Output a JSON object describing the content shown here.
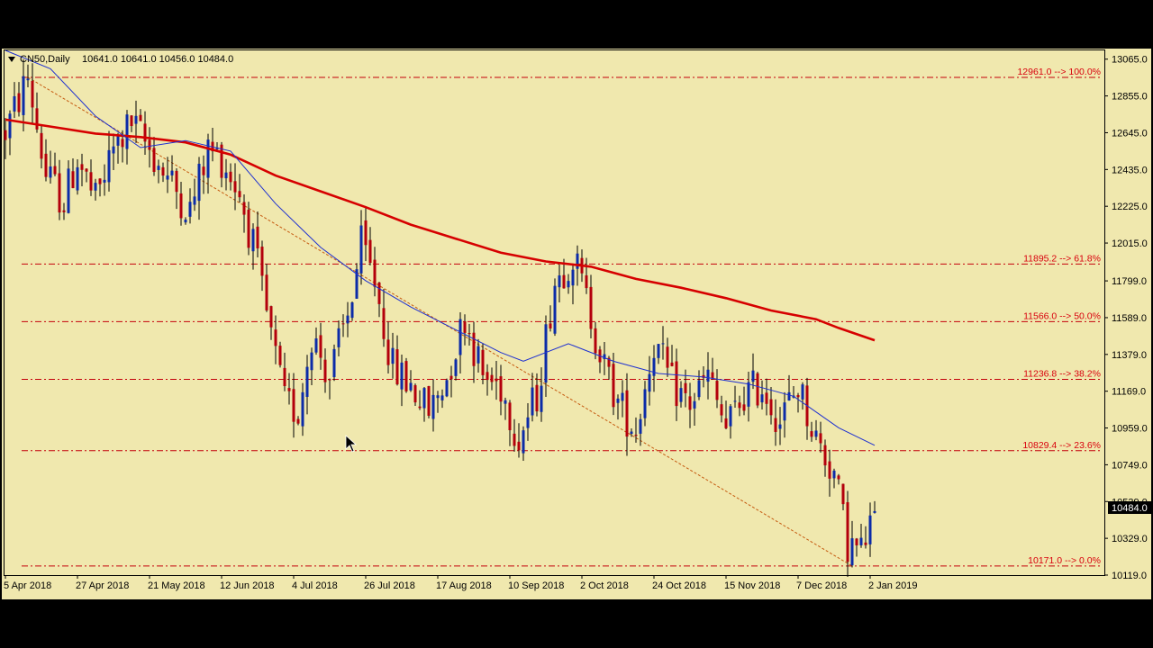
{
  "header": {
    "symbol_label": "CN50,Daily",
    "ohlc_label": "10641.0 10641.0 10456.0 10484.0"
  },
  "current_price_label": "10484.0",
  "colors": {
    "background": "#f0e8ae",
    "bull_candle": "#0c2ba8",
    "bear_candle": "#b3000c",
    "ma_fast": "#1d2fd1",
    "ma_slow": "#d60000",
    "fib_line": "#c4000b",
    "trendline": "#c55a10"
  },
  "chart_data": {
    "type": "candlestick",
    "title": "CN50,Daily",
    "ylim": [
      10119,
      13115
    ],
    "y_ticks": [
      13065.0,
      12855.0,
      12645.0,
      12435.0,
      12225.0,
      12015.0,
      11799.0,
      11589.0,
      11379.0,
      11169.0,
      10959.0,
      10749.0,
      10539.0,
      10329.0,
      10119.0
    ],
    "x_ticks": [
      "5 Apr 2018",
      "27 Apr 2018",
      "21 May 2018",
      "12 Jun 2018",
      "4 Jul 2018",
      "26 Jul 2018",
      "17 Aug 2018",
      "10 Sep 2018",
      "2 Oct 2018",
      "24 Oct 2018",
      "15 Nov 2018",
      "7 Dec 2018",
      "2 Jan 2019"
    ],
    "x_tick_bars": [
      0,
      16,
      32,
      48,
      64,
      80,
      96,
      112,
      128,
      144,
      160,
      176,
      192
    ],
    "num_bars": 194,
    "fib_levels": [
      {
        "price": 12961.0,
        "label": "12961.0 --> 100.0%"
      },
      {
        "price": 11895.2,
        "label": "11895.2 --> 61.8%"
      },
      {
        "price": 11566.0,
        "label": "11566.0 --> 50.0%"
      },
      {
        "price": 11236.8,
        "label": "11236.8 --> 38.2%"
      },
      {
        "price": 10829.4,
        "label": "10829.4 --> 23.6%"
      },
      {
        "price": 10171.0,
        "label": "10171.0 --> 0.0%"
      }
    ],
    "trendline": {
      "from": {
        "bar": 5,
        "price": 12961.0
      },
      "to": {
        "bar": 188,
        "price": 10171.0
      }
    },
    "ma_fast": [
      [
        0,
        13180
      ],
      [
        10,
        13010
      ],
      [
        20,
        12740
      ],
      [
        30,
        12560
      ],
      [
        40,
        12600
      ],
      [
        50,
        12540
      ],
      [
        60,
        12240
      ],
      [
        70,
        11990
      ],
      [
        80,
        11800
      ],
      [
        90,
        11650
      ],
      [
        100,
        11520
      ],
      [
        110,
        11390
      ],
      [
        115,
        11340
      ],
      [
        125,
        11440
      ],
      [
        135,
        11340
      ],
      [
        145,
        11270
      ],
      [
        155,
        11250
      ],
      [
        165,
        11210
      ],
      [
        175,
        11140
      ],
      [
        185,
        10960
      ],
      [
        193,
        10860
      ]
    ],
    "ma_slow": [
      [
        0,
        12720
      ],
      [
        10,
        12680
      ],
      [
        20,
        12640
      ],
      [
        30,
        12620
      ],
      [
        40,
        12590
      ],
      [
        50,
        12520
      ],
      [
        60,
        12400
      ],
      [
        70,
        12310
      ],
      [
        80,
        12220
      ],
      [
        90,
        12120
      ],
      [
        100,
        12040
      ],
      [
        110,
        11960
      ],
      [
        120,
        11910
      ],
      [
        130,
        11880
      ],
      [
        140,
        11810
      ],
      [
        150,
        11760
      ],
      [
        160,
        11700
      ],
      [
        170,
        11630
      ],
      [
        180,
        11580
      ],
      [
        185,
        11530
      ],
      [
        193,
        11460
      ]
    ],
    "price_path": [
      [
        0,
        12650
      ],
      [
        5,
        12961
      ],
      [
        9,
        12400
      ],
      [
        13,
        12250
      ],
      [
        16,
        12500
      ],
      [
        20,
        12250
      ],
      [
        24,
        12550
      ],
      [
        28,
        12700
      ],
      [
        32,
        12550
      ],
      [
        37,
        12350
      ],
      [
        41,
        12200
      ],
      [
        45,
        12550
      ],
      [
        48,
        12500
      ],
      [
        52,
        12300
      ],
      [
        55,
        12000
      ],
      [
        58,
        11600
      ],
      [
        62,
        11100
      ],
      [
        65,
        11050
      ],
      [
        68,
        11500
      ],
      [
        72,
        11250
      ],
      [
        76,
        11600
      ],
      [
        79,
        12000
      ],
      [
        82,
        11800
      ],
      [
        86,
        11300
      ],
      [
        90,
        11200
      ],
      [
        94,
        11050
      ],
      [
        98,
        11250
      ],
      [
        102,
        11600
      ],
      [
        106,
        11250
      ],
      [
        110,
        11200
      ],
      [
        114,
        10900
      ],
      [
        118,
        11150
      ],
      [
        122,
        11800
      ],
      [
        126,
        11950
      ],
      [
        130,
        11600
      ],
      [
        133,
        11300
      ],
      [
        136,
        11100
      ],
      [
        140,
        10950
      ],
      [
        144,
        11450
      ],
      [
        148,
        11200
      ],
      [
        152,
        11100
      ],
      [
        156,
        11250
      ],
      [
        160,
        10950
      ],
      [
        164,
        11150
      ],
      [
        168,
        11200
      ],
      [
        172,
        11000
      ],
      [
        176,
        11200
      ],
      [
        180,
        10900
      ],
      [
        184,
        10700
      ],
      [
        187,
        10300
      ],
      [
        190,
        10250
      ],
      [
        193,
        10484
      ]
    ]
  }
}
